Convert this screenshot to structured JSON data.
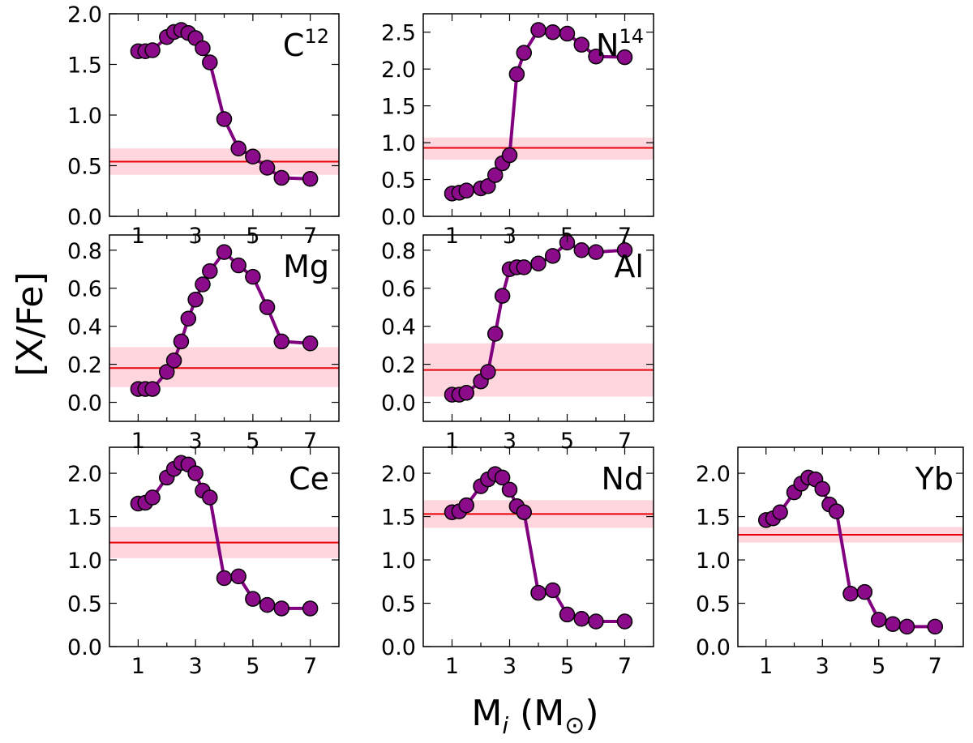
{
  "figure": {
    "ylabel": "[X/Fe]",
    "xlabel_main": "M",
    "xlabel_sub": "i",
    "xlabel_unit_open": " (M",
    "xlabel_unit_symbol": "⊙",
    "xlabel_unit_close": ")"
  },
  "colors": {
    "model_line": "#800080",
    "marker_fill": "#8b0b8b",
    "marker_edge": "#000000",
    "obs_line": "#e8000a",
    "obs_band": "#ffc0cb"
  },
  "chart_data": [
    {
      "type": "line",
      "element": "C",
      "element_sup": "12",
      "xlim": [
        0,
        8
      ],
      "xticks": [
        "1",
        "3",
        "5",
        "7"
      ],
      "ylim": [
        0,
        2.0
      ],
      "yticks": [
        "0.0",
        "0.5",
        "1.0",
        "1.5",
        "2.0"
      ],
      "x": [
        1.0,
        1.25,
        1.5,
        2.0,
        2.25,
        2.5,
        2.75,
        3.0,
        3.25,
        3.5,
        4.0,
        4.5,
        5.0,
        5.5,
        6.0,
        7.0
      ],
      "y": [
        1.63,
        1.63,
        1.64,
        1.77,
        1.82,
        1.84,
        1.81,
        1.76,
        1.66,
        1.52,
        0.96,
        0.67,
        0.59,
        0.48,
        0.38,
        0.37
      ],
      "obs": 0.54,
      "obs_band": [
        0.41,
        0.67
      ]
    },
    {
      "type": "line",
      "element": "N",
      "element_sup": "14",
      "xlim": [
        0,
        8
      ],
      "xticks": [
        "1",
        "3",
        "5",
        "7"
      ],
      "ylim": [
        0,
        2.75
      ],
      "yticks": [
        "0.0",
        "0.5",
        "1.0",
        "1.5",
        "2.0",
        "2.5"
      ],
      "x": [
        1.0,
        1.25,
        1.5,
        2.0,
        2.25,
        2.5,
        2.75,
        3.0,
        3.25,
        3.5,
        4.0,
        4.5,
        5.0,
        5.5,
        6.0,
        7.0
      ],
      "y": [
        0.31,
        0.32,
        0.35,
        0.38,
        0.41,
        0.56,
        0.72,
        0.83,
        1.93,
        2.22,
        2.53,
        2.5,
        2.48,
        2.33,
        2.17,
        2.16
      ],
      "obs": 0.93,
      "obs_band": [
        0.77,
        1.07
      ]
    },
    {
      "type": "line",
      "element": "Mg",
      "element_sup": "",
      "xlim": [
        0,
        8
      ],
      "xticks": [
        "1",
        "3",
        "5",
        "7"
      ],
      "ylim": [
        -0.1,
        0.88
      ],
      "yticks": [
        "0.0",
        "0.2",
        "0.4",
        "0.6",
        "0.8"
      ],
      "x": [
        1.0,
        1.25,
        1.5,
        2.0,
        2.25,
        2.5,
        2.75,
        3.0,
        3.25,
        3.5,
        4.0,
        4.5,
        5.0,
        5.5,
        6.0,
        7.0
      ],
      "y": [
        0.07,
        0.07,
        0.07,
        0.16,
        0.22,
        0.32,
        0.44,
        0.54,
        0.62,
        0.69,
        0.79,
        0.72,
        0.66,
        0.5,
        0.32,
        0.31
      ],
      "obs": 0.18,
      "obs_band": [
        0.08,
        0.29
      ]
    },
    {
      "type": "line",
      "element": "Al",
      "element_sup": "",
      "xlim": [
        0,
        8
      ],
      "xticks": [
        "1",
        "3",
        "5",
        "7"
      ],
      "ylim": [
        -0.1,
        0.88
      ],
      "yticks": [
        "0.0",
        "0.2",
        "0.4",
        "0.6",
        "0.8"
      ],
      "x": [
        1.0,
        1.25,
        1.5,
        2.0,
        2.25,
        2.5,
        2.75,
        3.0,
        3.25,
        3.5,
        4.0,
        4.5,
        5.0,
        5.5,
        6.0,
        7.0
      ],
      "y": [
        0.04,
        0.04,
        0.05,
        0.11,
        0.16,
        0.36,
        0.56,
        0.7,
        0.71,
        0.71,
        0.73,
        0.77,
        0.84,
        0.8,
        0.79,
        0.8
      ],
      "obs": 0.17,
      "obs_band": [
        0.03,
        0.31
      ]
    },
    {
      "type": "line",
      "element": "Ce",
      "element_sup": "",
      "xlim": [
        0,
        8
      ],
      "xticks": [
        "1",
        "3",
        "5",
        "7"
      ],
      "ylim": [
        0,
        2.3
      ],
      "yticks": [
        "0.0",
        "0.5",
        "1.0",
        "1.5",
        "2.0"
      ],
      "x": [
        1.0,
        1.25,
        1.5,
        2.0,
        2.25,
        2.5,
        2.75,
        3.0,
        3.25,
        3.5,
        4.0,
        4.5,
        5.0,
        5.5,
        6.0,
        7.0
      ],
      "y": [
        1.65,
        1.66,
        1.72,
        1.95,
        2.05,
        2.12,
        2.1,
        2.0,
        1.8,
        1.72,
        0.79,
        0.81,
        0.55,
        0.48,
        0.44,
        0.44
      ],
      "obs": 1.2,
      "obs_band": [
        1.02,
        1.38
      ]
    },
    {
      "type": "line",
      "element": "Nd",
      "element_sup": "",
      "xlim": [
        0,
        8
      ],
      "xticks": [
        "1",
        "3",
        "5",
        "7"
      ],
      "ylim": [
        0,
        2.3
      ],
      "yticks": [
        "0.0",
        "0.5",
        "1.0",
        "1.5",
        "2.0"
      ],
      "x": [
        1.0,
        1.25,
        1.5,
        2.0,
        2.25,
        2.5,
        2.75,
        3.0,
        3.25,
        3.5,
        4.0,
        4.5,
        5.0,
        5.5,
        6.0,
        7.0
      ],
      "y": [
        1.55,
        1.56,
        1.63,
        1.85,
        1.93,
        1.99,
        1.95,
        1.81,
        1.62,
        1.55,
        0.62,
        0.65,
        0.37,
        0.32,
        0.29,
        0.29
      ],
      "obs": 1.53,
      "obs_band": [
        1.37,
        1.69
      ]
    },
    {
      "type": "line",
      "element": "Yb",
      "element_sup": "",
      "xlim": [
        0,
        8
      ],
      "xticks": [
        "1",
        "3",
        "5",
        "7"
      ],
      "ylim": [
        0,
        2.3
      ],
      "yticks": [
        "0.0",
        "0.5",
        "1.0",
        "1.5",
        "2.0"
      ],
      "x": [
        1.0,
        1.25,
        1.5,
        2.0,
        2.25,
        2.5,
        2.75,
        3.0,
        3.25,
        3.5,
        4.0,
        4.5,
        5.0,
        5.5,
        6.0,
        7.0
      ],
      "y": [
        1.46,
        1.48,
        1.55,
        1.78,
        1.88,
        1.95,
        1.93,
        1.82,
        1.64,
        1.56,
        0.61,
        0.63,
        0.31,
        0.26,
        0.23,
        0.23
      ],
      "obs": 1.29,
      "obs_band": [
        1.2,
        1.38
      ]
    }
  ]
}
